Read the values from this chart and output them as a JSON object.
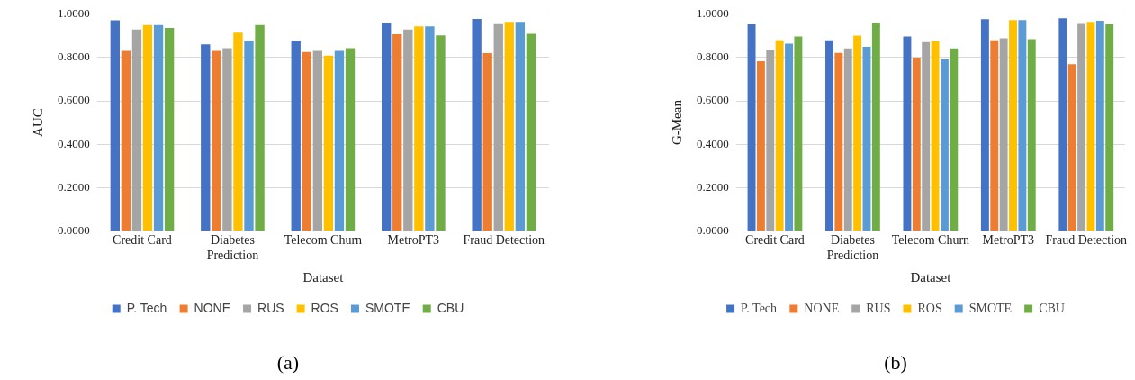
{
  "chart_data": [
    {
      "type": "bar",
      "xlabel": "Dataset",
      "ylabel": "AUC",
      "categories": [
        "Credit Card",
        "Diabetes Prediction",
        "Telecom Churn",
        "MetroPT3",
        "Fraud Detection"
      ],
      "series": [
        {
          "name": "P. Tech",
          "color": "#4472c4",
          "values": [
            0.972,
            0.861,
            0.878,
            0.96,
            0.978
          ]
        },
        {
          "name": "NONE",
          "color": "#ed7d31",
          "values": [
            0.831,
            0.831,
            0.826,
            0.908,
            0.82
          ]
        },
        {
          "name": "RUS",
          "color": "#a5a5a5",
          "values": [
            0.93,
            0.843,
            0.831,
            0.93,
            0.955
          ]
        },
        {
          "name": "ROS",
          "color": "#ffc000",
          "values": [
            0.95,
            0.915,
            0.809,
            0.944,
            0.965
          ]
        },
        {
          "name": "SMOTE",
          "color": "#5b9bd5",
          "values": [
            0.95,
            0.878,
            0.831,
            0.944,
            0.965
          ]
        },
        {
          "name": "CBU",
          "color": "#70ad47",
          "values": [
            0.937,
            0.95,
            0.843,
            0.903,
            0.91
          ]
        }
      ],
      "ylim": [
        0,
        1
      ],
      "yticks": [
        {
          "value": 0,
          "label": "0.0000"
        },
        {
          "value": 0.2,
          "label": "0.2000"
        },
        {
          "value": 0.4,
          "label": "0.4000"
        },
        {
          "value": 0.6,
          "label": "0.6000"
        },
        {
          "value": 0.8,
          "label": "0.8000"
        },
        {
          "value": 1,
          "label": "1.0000"
        }
      ],
      "grid": "y",
      "legend": "bottom",
      "annotations": [
        "(a)"
      ]
    },
    {
      "type": "bar",
      "xlabel": "Dataset",
      "ylabel": "G-Mean",
      "categories": [
        "Credit Card",
        "Diabetes Prediction",
        "Telecom Churn",
        "MetroPT3",
        "Fraud Detection"
      ],
      "series": [
        {
          "name": "P. Tech",
          "color": "#4472c4",
          "values": [
            0.953,
            0.88,
            0.897,
            0.977,
            0.982
          ]
        },
        {
          "name": "NONE",
          "color": "#ed7d31",
          "values": [
            0.783,
            0.821,
            0.8,
            0.88,
            0.77
          ]
        },
        {
          "name": "RUS",
          "color": "#a5a5a5",
          "values": [
            0.833,
            0.842,
            0.871,
            0.889,
            0.956
          ]
        },
        {
          "name": "ROS",
          "color": "#ffc000",
          "values": [
            0.88,
            0.902,
            0.876,
            0.973,
            0.965
          ]
        },
        {
          "name": "SMOTE",
          "color": "#5b9bd5",
          "values": [
            0.864,
            0.85,
            0.791,
            0.973,
            0.97
          ]
        },
        {
          "name": "CBU",
          "color": "#70ad47",
          "values": [
            0.897,
            0.961,
            0.842,
            0.885,
            0.953
          ]
        }
      ],
      "ylim": [
        0,
        1
      ],
      "yticks": [
        {
          "value": 0,
          "label": "0.0000"
        },
        {
          "value": 0.2,
          "label": "0.2000"
        },
        {
          "value": 0.4,
          "label": "0.4000"
        },
        {
          "value": 0.6,
          "label": "0.6000"
        },
        {
          "value": 0.8,
          "label": "0.8000"
        },
        {
          "value": 1,
          "label": "1.0000"
        }
      ],
      "grid": "y",
      "legend": "bottom",
      "annotations": [
        "(b)"
      ]
    }
  ]
}
